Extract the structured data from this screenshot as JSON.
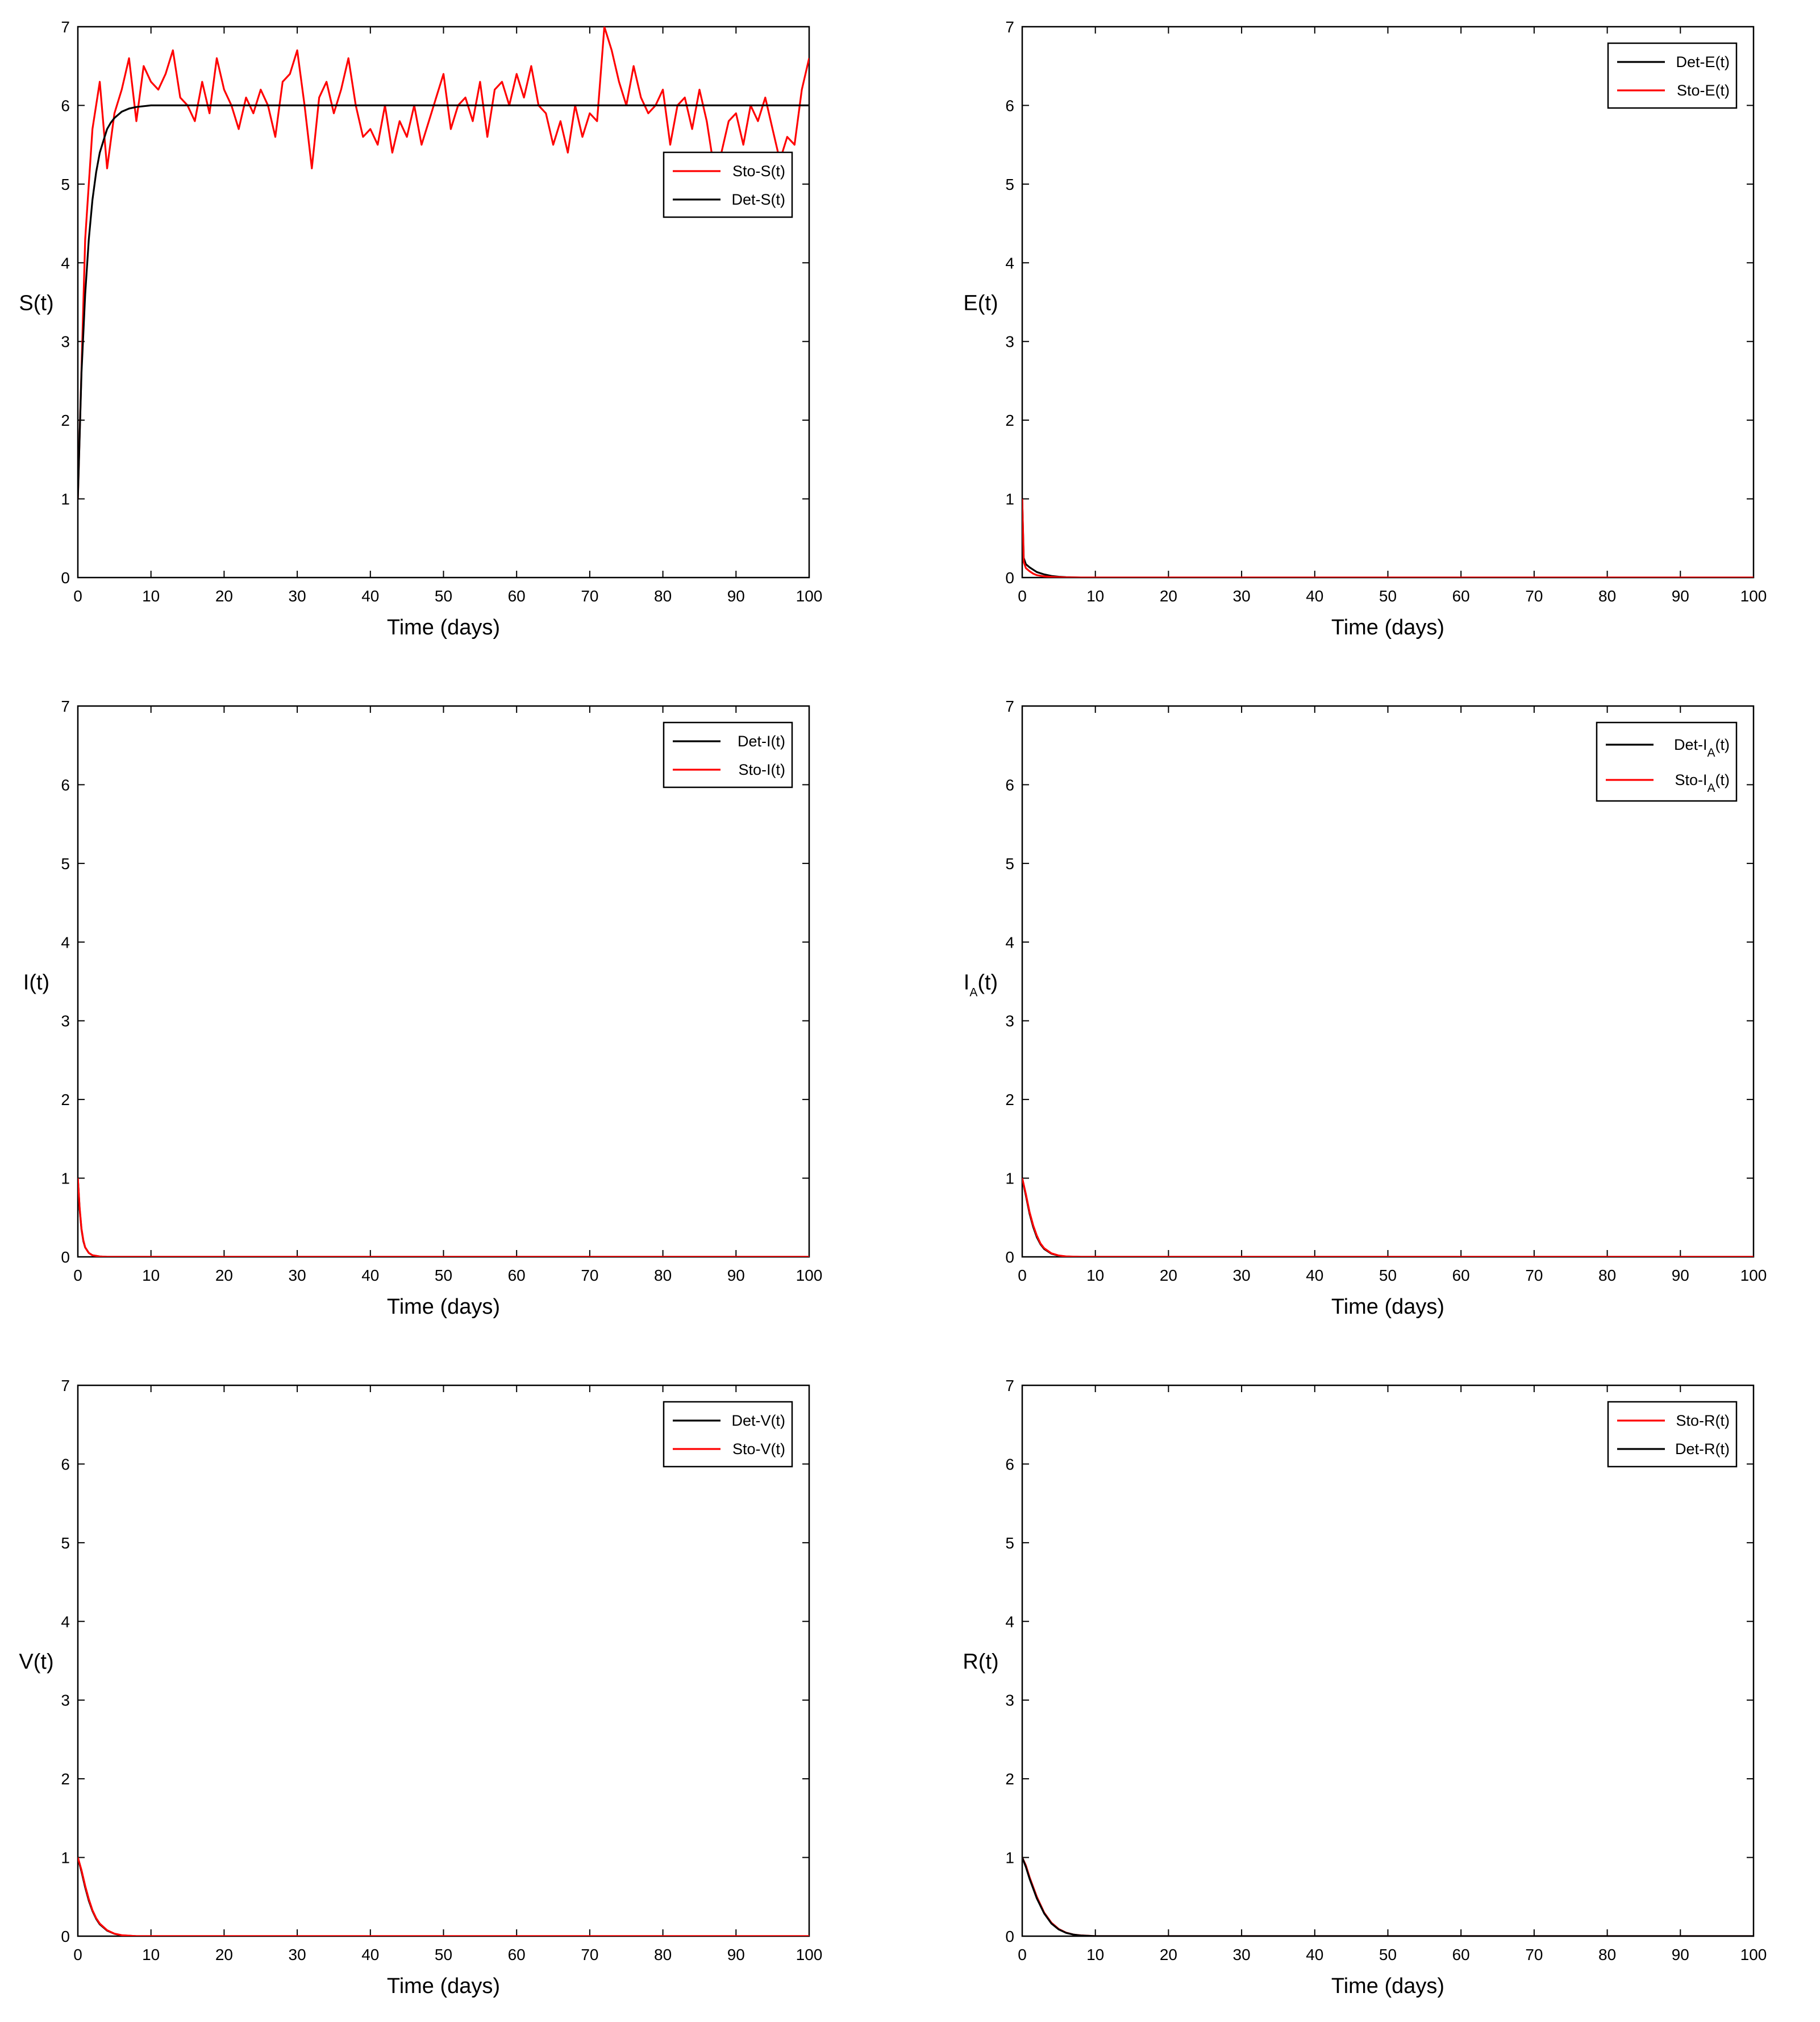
{
  "colors": {
    "deterministic": "#000000",
    "stochastic": "#ff0000"
  },
  "chart_data": [
    {
      "type": "line",
      "ylabel": "S(t)",
      "ylabel_sub": "",
      "xlabel": "Time (days)",
      "xlim": [
        0,
        100
      ],
      "ylim": [
        0,
        7
      ],
      "xticks": [
        0,
        10,
        20,
        30,
        40,
        50,
        60,
        70,
        80,
        90,
        100
      ],
      "yticks": [
        0,
        1,
        2,
        3,
        4,
        5,
        6,
        7
      ],
      "grid": false,
      "legend_position": "upper-right",
      "series": [
        {
          "name": "Sto-S(t)",
          "name_prefix": "Sto-S",
          "name_sub": "",
          "name_suffix": "(t)",
          "color": "#ff0000",
          "x": [
            0,
            1,
            2,
            3,
            4,
            5,
            6,
            7,
            8,
            9,
            10,
            11,
            12,
            13,
            14,
            15,
            16,
            17,
            18,
            19,
            20,
            21,
            22,
            23,
            24,
            25,
            26,
            27,
            28,
            29,
            30,
            31,
            32,
            33,
            34,
            35,
            36,
            37,
            38,
            39,
            40,
            41,
            42,
            43,
            44,
            45,
            46,
            47,
            48,
            49,
            50,
            51,
            52,
            53,
            54,
            55,
            56,
            57,
            58,
            59,
            60,
            61,
            62,
            63,
            64,
            65,
            66,
            67,
            68,
            69,
            70,
            71,
            72,
            73,
            74,
            75,
            76,
            77,
            78,
            79,
            80,
            81,
            82,
            83,
            84,
            85,
            86,
            87,
            88,
            89,
            90,
            91,
            92,
            93,
            94,
            95,
            96,
            97,
            98,
            99,
            100
          ],
          "y": [
            1.0,
            4.3,
            5.7,
            6.3,
            5.2,
            5.9,
            6.2,
            6.6,
            5.8,
            6.5,
            6.3,
            6.2,
            6.4,
            6.7,
            6.1,
            6.0,
            5.8,
            6.3,
            5.9,
            6.6,
            6.2,
            6.0,
            5.7,
            6.1,
            5.9,
            6.2,
            6.0,
            5.6,
            6.3,
            6.4,
            6.7,
            6.0,
            5.2,
            6.1,
            6.3,
            5.9,
            6.2,
            6.6,
            6.0,
            5.6,
            5.7,
            5.5,
            6.0,
            5.4,
            5.8,
            5.6,
            6.0,
            5.5,
            5.8,
            6.1,
            6.4,
            5.7,
            6.0,
            6.1,
            5.8,
            6.3,
            5.6,
            6.2,
            6.3,
            6.0,
            6.4,
            6.1,
            6.5,
            6.0,
            5.9,
            5.5,
            5.8,
            5.4,
            6.0,
            5.6,
            5.9,
            5.8,
            7.0,
            6.7,
            6.3,
            6.0,
            6.5,
            6.1,
            5.9,
            6.0,
            6.2,
            5.5,
            6.0,
            6.1,
            5.7,
            6.2,
            5.8,
            5.2,
            5.4,
            5.8,
            5.9,
            5.5,
            6.0,
            5.8,
            6.1,
            5.7,
            5.3,
            5.6,
            5.5,
            6.2,
            6.6
          ]
        },
        {
          "name": "Det-S(t)",
          "name_prefix": "Det-S",
          "name_sub": "",
          "name_suffix": "(t)",
          "color": "#000000",
          "x": [
            0,
            0.5,
            1,
            1.5,
            2,
            2.5,
            3,
            3.5,
            4,
            4.5,
            5,
            6,
            7,
            8,
            10,
            15,
            20,
            30,
            40,
            50,
            60,
            70,
            80,
            90,
            100
          ],
          "y": [
            1.0,
            2.6,
            3.6,
            4.3,
            4.8,
            5.15,
            5.4,
            5.55,
            5.7,
            5.78,
            5.84,
            5.92,
            5.96,
            5.98,
            6.0,
            6.0,
            6.0,
            6.0,
            6.0,
            6.0,
            6.0,
            6.0,
            6.0,
            6.0,
            6.0
          ]
        }
      ]
    },
    {
      "type": "line",
      "ylabel": "E(t)",
      "ylabel_sub": "",
      "xlabel": "Time (days)",
      "xlim": [
        0,
        100
      ],
      "ylim": [
        0,
        7
      ],
      "xticks": [
        0,
        10,
        20,
        30,
        40,
        50,
        60,
        70,
        80,
        90,
        100
      ],
      "yticks": [
        0,
        1,
        2,
        3,
        4,
        5,
        6,
        7
      ],
      "grid": false,
      "legend_position": "upper-right",
      "series": [
        {
          "name": "Det-E(t)",
          "name_prefix": "Det-E",
          "name_sub": "",
          "name_suffix": "(t)",
          "color": "#000000",
          "x": [
            0,
            0.2,
            0.5,
            1,
            1.5,
            2,
            3,
            4,
            5,
            6,
            8,
            10,
            100
          ],
          "y": [
            1.0,
            0.25,
            0.17,
            0.13,
            0.1,
            0.07,
            0.04,
            0.02,
            0.01,
            0.005,
            0.0,
            0.0,
            0.0
          ]
        },
        {
          "name": "Sto-E(t)",
          "name_prefix": "Sto-E",
          "name_sub": "",
          "name_suffix": "(t)",
          "color": "#ff0000",
          "x": [
            0,
            0.2,
            0.5,
            1,
            1.5,
            2,
            3,
            4,
            5,
            6,
            8,
            10,
            100
          ],
          "y": [
            1.0,
            0.2,
            0.12,
            0.08,
            0.05,
            0.03,
            0.015,
            0.008,
            0.004,
            0.002,
            0.0,
            0.0,
            0.0
          ]
        }
      ]
    },
    {
      "type": "line",
      "ylabel": "I(t)",
      "ylabel_sub": "",
      "xlabel": "Time (days)",
      "xlim": [
        0,
        100
      ],
      "ylim": [
        0,
        7
      ],
      "xticks": [
        0,
        10,
        20,
        30,
        40,
        50,
        60,
        70,
        80,
        90,
        100
      ],
      "yticks": [
        0,
        1,
        2,
        3,
        4,
        5,
        6,
        7
      ],
      "grid": false,
      "legend_position": "upper-right",
      "series": [
        {
          "name": "Det-I(t)",
          "name_prefix": "Det-I",
          "name_sub": "",
          "name_suffix": "(t)",
          "color": "#000000",
          "x": [
            0,
            0.25,
            0.5,
            0.75,
            1,
            1.5,
            2,
            3,
            4,
            6,
            100
          ],
          "y": [
            1.0,
            0.6,
            0.35,
            0.2,
            0.12,
            0.05,
            0.02,
            0.005,
            0.0,
            0.0,
            0.0
          ]
        },
        {
          "name": "Sto-I(t)",
          "name_prefix": "Sto-I",
          "name_sub": "",
          "name_suffix": "(t)",
          "color": "#ff0000",
          "x": [
            0,
            0.25,
            0.5,
            0.75,
            1,
            1.5,
            2,
            3,
            4,
            6,
            100
          ],
          "y": [
            1.0,
            0.62,
            0.36,
            0.21,
            0.12,
            0.05,
            0.02,
            0.005,
            0.0,
            0.0,
            0.0
          ]
        }
      ]
    },
    {
      "type": "line",
      "ylabel": "I",
      "ylabel_sub": "A",
      "ylabel_suffix": "(t)",
      "xlabel": "Time (days)",
      "xlim": [
        0,
        100
      ],
      "ylim": [
        0,
        7
      ],
      "xticks": [
        0,
        10,
        20,
        30,
        40,
        50,
        60,
        70,
        80,
        90,
        100
      ],
      "yticks": [
        0,
        1,
        2,
        3,
        4,
        5,
        6,
        7
      ],
      "grid": false,
      "legend_position": "upper-right",
      "series": [
        {
          "name": "Det-IA(t)",
          "name_prefix": "Det-I",
          "name_sub": "A",
          "name_suffix": "(t)",
          "color": "#000000",
          "x": [
            0,
            0.5,
            1,
            1.5,
            2,
            2.5,
            3,
            4,
            5,
            6,
            8,
            100
          ],
          "y": [
            1.0,
            0.78,
            0.55,
            0.38,
            0.25,
            0.16,
            0.1,
            0.04,
            0.015,
            0.005,
            0.0,
            0.0
          ]
        },
        {
          "name": "Sto-IA(t)",
          "name_prefix": "Sto-I",
          "name_sub": "A",
          "name_suffix": "(t)",
          "color": "#ff0000",
          "x": [
            0,
            0.5,
            1,
            1.5,
            2,
            2.5,
            3,
            4,
            5,
            6,
            8,
            100
          ],
          "y": [
            1.0,
            0.8,
            0.57,
            0.4,
            0.27,
            0.17,
            0.11,
            0.045,
            0.017,
            0.006,
            0.0,
            0.0
          ]
        }
      ]
    },
    {
      "type": "line",
      "ylabel": "V(t)",
      "ylabel_sub": "",
      "xlabel": "Time (days)",
      "xlim": [
        0,
        100
      ],
      "ylim": [
        0,
        7
      ],
      "xticks": [
        0,
        10,
        20,
        30,
        40,
        50,
        60,
        70,
        80,
        90,
        100
      ],
      "yticks": [
        0,
        1,
        2,
        3,
        4,
        5,
        6,
        7
      ],
      "grid": false,
      "legend_position": "upper-right",
      "series": [
        {
          "name": "Det-V(t)",
          "name_prefix": "Det-V",
          "name_sub": "",
          "name_suffix": "(t)",
          "color": "#000000",
          "x": [
            0,
            0.5,
            1,
            1.5,
            2,
            2.5,
            3,
            4,
            5,
            6,
            8,
            100
          ],
          "y": [
            1.0,
            0.82,
            0.62,
            0.45,
            0.32,
            0.22,
            0.15,
            0.07,
            0.03,
            0.01,
            0.0,
            0.0
          ]
        },
        {
          "name": "Sto-V(t)",
          "name_prefix": "Sto-V",
          "name_sub": "",
          "name_suffix": "(t)",
          "color": "#ff0000",
          "x": [
            0,
            0.5,
            1,
            1.5,
            2,
            2.5,
            3,
            4,
            5,
            6,
            8,
            100
          ],
          "y": [
            1.0,
            0.84,
            0.64,
            0.47,
            0.33,
            0.23,
            0.16,
            0.075,
            0.032,
            0.012,
            0.0,
            0.0
          ]
        }
      ]
    },
    {
      "type": "line",
      "ylabel": "R(t)",
      "ylabel_sub": "",
      "xlabel": "Time (days)",
      "xlim": [
        0,
        100
      ],
      "ylim": [
        0,
        7
      ],
      "xticks": [
        0,
        10,
        20,
        30,
        40,
        50,
        60,
        70,
        80,
        90,
        100
      ],
      "yticks": [
        0,
        1,
        2,
        3,
        4,
        5,
        6,
        7
      ],
      "grid": false,
      "legend_position": "upper-right",
      "series": [
        {
          "name": "Sto-R(t)",
          "name_prefix": "Sto-R",
          "name_sub": "",
          "name_suffix": "(t)",
          "color": "#ff0000",
          "x": [
            0,
            0.5,
            1,
            2,
            3,
            4,
            5,
            6,
            7,
            8,
            10,
            100
          ],
          "y": [
            1.0,
            0.9,
            0.75,
            0.5,
            0.3,
            0.17,
            0.09,
            0.045,
            0.02,
            0.01,
            0.0,
            0.0
          ]
        },
        {
          "name": "Det-R(t)",
          "name_prefix": "Det-R",
          "name_sub": "",
          "name_suffix": "(t)",
          "color": "#000000",
          "x": [
            0,
            0.5,
            1,
            2,
            3,
            4,
            5,
            6,
            7,
            8,
            10,
            100
          ],
          "y": [
            1.0,
            0.88,
            0.73,
            0.48,
            0.29,
            0.16,
            0.085,
            0.042,
            0.02,
            0.009,
            0.0,
            0.0
          ]
        }
      ]
    }
  ]
}
